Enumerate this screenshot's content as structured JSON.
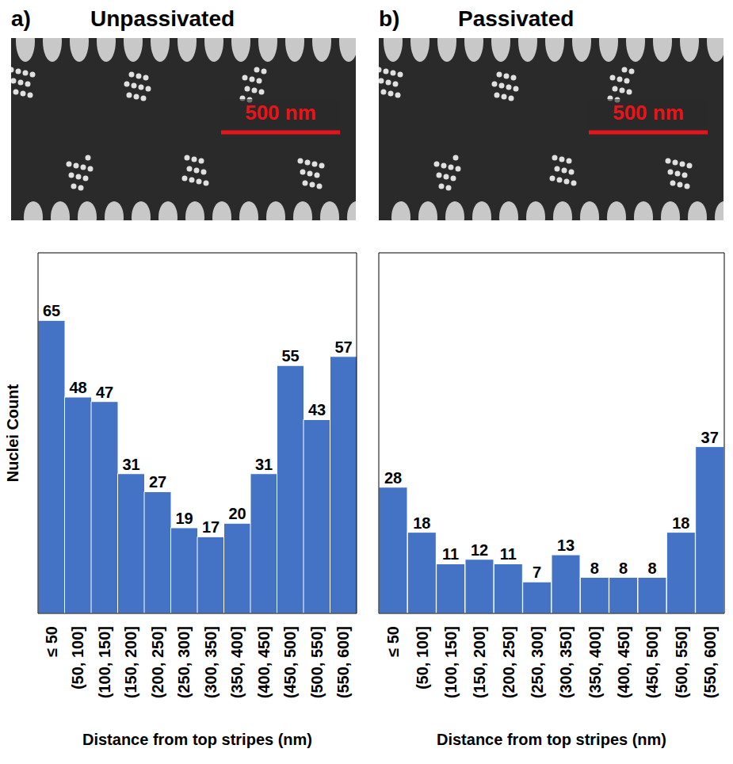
{
  "chart_data": [
    {
      "panel": "a)",
      "title": "Unpassivated",
      "annotations": [
        "500 nm"
      ],
      "type": "bar",
      "categories": [
        "≤ 50",
        "(50, 100]",
        "(100, 150]",
        "(150, 200]",
        "(200, 250]",
        "(250, 300]",
        "(300, 350]",
        "(350, 400]",
        "(400, 450]",
        "(450, 500]",
        "(500, 550]",
        "(550, 600]"
      ],
      "values": [
        65,
        48,
        47,
        31,
        27,
        19,
        17,
        20,
        31,
        55,
        43,
        57
      ],
      "color": "#4472c4",
      "ylim": [
        0,
        80
      ],
      "xlabel": "Distance from top stripes (nm)",
      "ylabel": "Nuclei Count",
      "data_labels": true,
      "tick_labels": "x",
      "grid": false
    },
    {
      "panel": "b)",
      "title": "Passivated",
      "annotations": [
        "500 nm"
      ],
      "type": "bar",
      "categories": [
        "≤ 50",
        "(50, 100]",
        "(100, 150]",
        "(150, 200]",
        "(200, 250]",
        "(250, 300]",
        "(300, 350]",
        "(350, 400]",
        "(400, 450]",
        "(450, 500]",
        "(500, 550]",
        "(550, 600]"
      ],
      "values": [
        28,
        18,
        11,
        12,
        11,
        7,
        13,
        8,
        8,
        8,
        18,
        37
      ],
      "color": "#4472c4",
      "ylim": [
        0,
        80
      ],
      "xlabel": "Distance from top stripes (nm)",
      "data_labels": true,
      "tick_labels": "x",
      "grid": false
    }
  ]
}
